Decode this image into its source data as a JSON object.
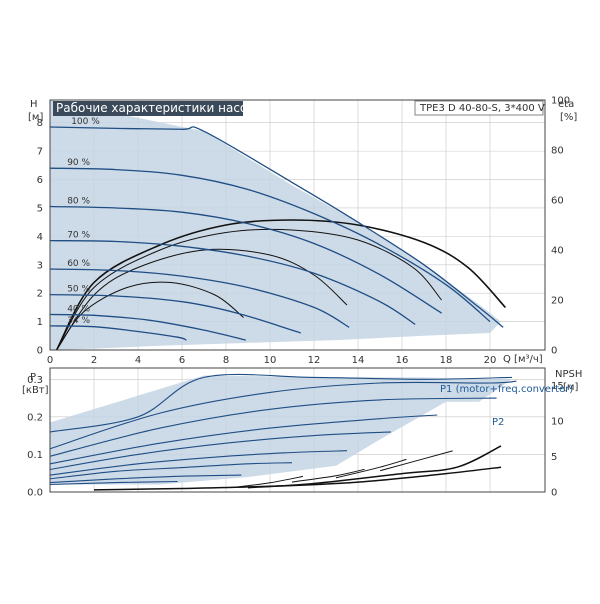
{
  "colors": {
    "envelope_fill": "#c4d4e3",
    "curve_blue": "#1f4e85",
    "curve_black": "#111111",
    "grid": "#c8c8c8",
    "frame": "#444444",
    "title_bg": "#3b4a5a",
    "label_blue": "#1f5a9c"
  },
  "header": {
    "title": "Рабочие характеристики насоса",
    "model": "TPE3 D 40-80-S, 3*400 V"
  },
  "chart_data": [
    {
      "type": "line",
      "name": "pump-curves",
      "x_label": "Q [м³/ч]",
      "y_label_left": "H",
      "y_unit_left": "[м]",
      "y_label_right": "eta",
      "y_unit_right": "[%]",
      "xlim": [
        0,
        22.5
      ],
      "ylim": [
        0,
        8.8
      ],
      "eta_lim": [
        0,
        100
      ],
      "x_ticks": [
        0,
        2,
        4,
        6,
        8,
        10,
        12,
        14,
        16,
        18,
        20
      ],
      "y_ticks": [
        0,
        1,
        2,
        3,
        4,
        5,
        6,
        7,
        8
      ],
      "eta_ticks": [
        0,
        20,
        40,
        60,
        80,
        100
      ],
      "grid": true,
      "envelope": [
        [
          0,
          8.8
        ],
        [
          7,
          7.7
        ],
        [
          11,
          5.8
        ],
        [
          14,
          4.5
        ],
        [
          17,
          3.0
        ],
        [
          19.5,
          1.6
        ],
        [
          20.5,
          1.0
        ],
        [
          20,
          0.6
        ],
        [
          17,
          0.5
        ],
        [
          13,
          0.35
        ],
        [
          9,
          0.25
        ],
        [
          5,
          0.15
        ],
        [
          2,
          0.05
        ],
        [
          0,
          0
        ]
      ],
      "head_curves": [
        {
          "label": "100 %",
          "points": [
            [
              0,
              7.85
            ],
            [
              3,
              7.8
            ],
            [
              6,
              7.77
            ],
            [
              7,
              7.7
            ],
            [
              11,
              5.9
            ],
            [
              14,
              4.5
            ],
            [
              17,
              3.0
            ],
            [
              19.5,
              1.5
            ],
            [
              20.6,
              0.8
            ]
          ]
        },
        {
          "label": "90 %",
          "points": [
            [
              0,
              6.4
            ],
            [
              3,
              6.35
            ],
            [
              6,
              6.15
            ],
            [
              9,
              5.65
            ],
            [
              12,
              4.8
            ],
            [
              15,
              3.7
            ],
            [
              18,
              2.3
            ],
            [
              20,
              1.0
            ]
          ]
        },
        {
          "label": "80 %",
          "points": [
            [
              0,
              5.05
            ],
            [
              3,
              5.0
            ],
            [
              6,
              4.85
            ],
            [
              9,
              4.45
            ],
            [
              12,
              3.75
            ],
            [
              15,
              2.65
            ],
            [
              17.8,
              1.3
            ]
          ]
        },
        {
          "label": "70 %",
          "points": [
            [
              0,
              3.85
            ],
            [
              3,
              3.82
            ],
            [
              6,
              3.65
            ],
            [
              9,
              3.3
            ],
            [
              12,
              2.7
            ],
            [
              15,
              1.7
            ],
            [
              16.6,
              0.9
            ]
          ]
        },
        {
          "label": "60 %",
          "points": [
            [
              0,
              2.85
            ],
            [
              3,
              2.8
            ],
            [
              6,
              2.6
            ],
            [
              9,
              2.2
            ],
            [
              12,
              1.5
            ],
            [
              13.6,
              0.8
            ]
          ]
        },
        {
          "label": "50 %",
          "points": [
            [
              0,
              1.95
            ],
            [
              3,
              1.9
            ],
            [
              6,
              1.7
            ],
            [
              8.5,
              1.3
            ],
            [
              11,
              0.7
            ],
            [
              11.4,
              0.6
            ]
          ]
        },
        {
          "label": "40 %",
          "points": [
            [
              0,
              1.25
            ],
            [
              2,
              1.22
            ],
            [
              4.5,
              1.05
            ],
            [
              7,
              0.7
            ],
            [
              8.9,
              0.35
            ]
          ]
        },
        {
          "label": "34 %",
          "points": [
            [
              0,
              0.85
            ],
            [
              2,
              0.82
            ],
            [
              4,
              0.65
            ],
            [
              5.8,
              0.45
            ],
            [
              6.2,
              0.35
            ]
          ]
        }
      ],
      "efficiency_curves": [
        {
          "label": "100 %",
          "points": [
            [
              0.3,
              0
            ],
            [
              2,
              27
            ],
            [
              5,
              42
            ],
            [
              8,
              50
            ],
            [
              11,
              52
            ],
            [
              14,
              50
            ],
            [
              17,
              43
            ],
            [
              19,
              33
            ],
            [
              20.7,
              17
            ]
          ]
        },
        {
          "label": "80 %",
          "points": [
            [
              0.3,
              0
            ],
            [
              2,
              25
            ],
            [
              5,
              40
            ],
            [
              8,
              47
            ],
            [
              11,
              48
            ],
            [
              14,
              44
            ],
            [
              16.5,
              33
            ],
            [
              17.8,
              20
            ]
          ]
        },
        {
          "label": "60 %",
          "points": [
            [
              0.3,
              0
            ],
            [
              2,
              22
            ],
            [
              4,
              33
            ],
            [
              7,
              40
            ],
            [
              10,
              38
            ],
            [
              12,
              30
            ],
            [
              13.5,
              18
            ]
          ]
        },
        {
          "label": "40 %",
          "points": [
            [
              0.3,
              0
            ],
            [
              1.5,
              15
            ],
            [
              3.5,
              25
            ],
            [
              5.5,
              27
            ],
            [
              7.5,
              22
            ],
            [
              8.8,
              13
            ]
          ]
        }
      ]
    },
    {
      "type": "line",
      "name": "power-npsh",
      "y_label_left": "P",
      "y_unit_left": "[кВт]",
      "y_label_right": "NPSH",
      "y_unit_right": "[м]",
      "xlim": [
        0,
        22.5
      ],
      "ylim": [
        0,
        0.33
      ],
      "npsh_lim": [
        0,
        17.5
      ],
      "y_ticks": [
        0.0,
        0.1,
        0.2,
        0.3
      ],
      "y_tick_labels": [
        "0.0",
        "0.1",
        "0.2",
        "0.3"
      ],
      "npsh_ticks": [
        0,
        5,
        10,
        15
      ],
      "grid": true,
      "series_labels": {
        "p1": "P1 (motor+freq.converter)",
        "p2": "P2"
      },
      "envelope": [
        [
          0,
          0.185
        ],
        [
          7,
          0.31
        ],
        [
          14,
          0.305
        ],
        [
          17,
          0.305
        ],
        [
          19.5,
          0.3
        ],
        [
          21,
          0.3
        ],
        [
          19.5,
          0.24
        ],
        [
          18,
          0.24
        ],
        [
          15,
          0.14
        ],
        [
          13,
          0.07
        ],
        [
          9,
          0.04
        ],
        [
          5,
          0.02
        ],
        [
          0,
          0.02
        ]
      ],
      "power_curves": [
        {
          "points": [
            [
              0,
              0.16
            ],
            [
              4,
              0.2
            ],
            [
              7,
              0.305
            ],
            [
              12,
              0.305
            ],
            [
              17,
              0.3
            ],
            [
              21,
              0.305
            ]
          ]
        },
        {
          "points": [
            [
              0,
              0.115
            ],
            [
              5,
              0.21
            ],
            [
              10,
              0.265
            ],
            [
              15,
              0.29
            ],
            [
              20,
              0.29
            ],
            [
              21.2,
              0.295
            ]
          ]
        },
        {
          "points": [
            [
              0,
              0.095
            ],
            [
              5,
              0.17
            ],
            [
              10,
              0.22
            ],
            [
              15,
              0.245
            ],
            [
              20.3,
              0.25
            ]
          ]
        },
        {
          "points": [
            [
              0,
              0.075
            ],
            [
              5,
              0.13
            ],
            [
              10,
              0.17
            ],
            [
              15,
              0.195
            ],
            [
              17.6,
              0.205
            ]
          ]
        },
        {
          "points": [
            [
              0,
              0.06
            ],
            [
              4,
              0.1
            ],
            [
              8,
              0.13
            ],
            [
              12,
              0.15
            ],
            [
              15.5,
              0.16
            ]
          ]
        },
        {
          "points": [
            [
              0,
              0.045
            ],
            [
              4,
              0.075
            ],
            [
              8,
              0.095
            ],
            [
              11,
              0.105
            ],
            [
              13.5,
              0.11
            ]
          ]
        },
        {
          "points": [
            [
              0,
              0.035
            ],
            [
              3,
              0.055
            ],
            [
              6,
              0.065
            ],
            [
              9,
              0.075
            ],
            [
              11,
              0.078
            ]
          ]
        },
        {
          "points": [
            [
              0,
              0.025
            ],
            [
              3,
              0.035
            ],
            [
              6,
              0.042
            ],
            [
              8.7,
              0.045
            ]
          ]
        },
        {
          "points": [
            [
              0,
              0.02
            ],
            [
              3,
              0.025
            ],
            [
              5.8,
              0.028
            ]
          ]
        }
      ],
      "npsh_curves": [
        {
          "points": [
            [
              2,
              0.3
            ],
            [
              6,
              0.5
            ],
            [
              10,
              0.8
            ],
            [
              14,
              1.4
            ],
            [
              18,
              2.6
            ],
            [
              20.5,
              3.5
            ]
          ]
        },
        {
          "points": [
            [
              9,
              0.6
            ],
            [
              12,
              1.2
            ],
            [
              16,
              2.6
            ],
            [
              18.5,
              3.5
            ],
            [
              20.5,
              6.5
            ]
          ]
        },
        {
          "points": [
            [
              8.5,
              0.7
            ],
            [
              10,
              1.3
            ],
            [
              11.5,
              2.2
            ]
          ]
        },
        {
          "points": [
            [
              11,
              1.4
            ],
            [
              13,
              2.3
            ],
            [
              14.3,
              3.2
            ]
          ]
        },
        {
          "points": [
            [
              13,
              2.0
            ],
            [
              15,
              3.5
            ],
            [
              16.2,
              4.6
            ]
          ]
        },
        {
          "points": [
            [
              15,
              3.0
            ],
            [
              17,
              4.7
            ],
            [
              18.3,
              5.8
            ]
          ]
        }
      ]
    }
  ]
}
